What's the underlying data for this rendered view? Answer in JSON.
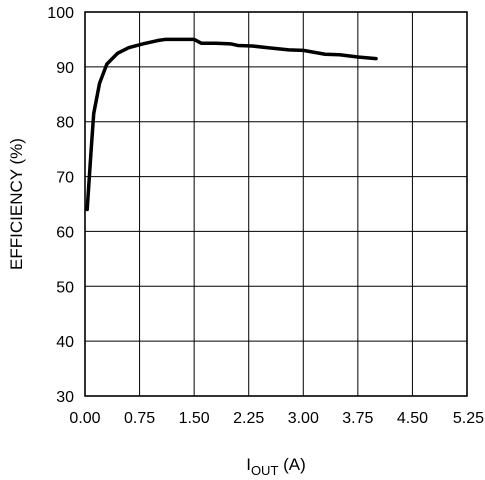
{
  "chart_data": {
    "type": "line",
    "title": "",
    "xlabel_main": "I",
    "xlabel_sub": "OUT",
    "xlabel_unit": " (A)",
    "ylabel": "EFFICIENCY (%)",
    "xlim": [
      0,
      5.25
    ],
    "ylim": [
      30,
      100
    ],
    "grid": true,
    "x_ticks": [
      0,
      0.75,
      1.5,
      2.25,
      3.0,
      3.75,
      4.5,
      5.25
    ],
    "x_tick_labels": [
      "0.00",
      "0.75",
      "1.50",
      "2.25",
      "3.00",
      "3.75",
      "4.50",
      "5.25"
    ],
    "y_ticks": [
      30,
      40,
      50,
      60,
      70,
      80,
      90,
      100
    ],
    "y_tick_labels": [
      "30",
      "40",
      "50",
      "60",
      "70",
      "80",
      "90",
      "100"
    ],
    "series": [
      {
        "x": [
          0.03,
          0.08,
          0.12,
          0.2,
          0.3,
          0.45,
          0.6,
          0.8,
          1.0,
          1.1,
          1.3,
          1.5,
          1.6,
          1.8,
          2.0,
          2.1,
          2.3,
          2.5,
          2.8,
          3.0,
          3.3,
          3.5,
          3.75,
          4.0
        ],
        "y": [
          64,
          74,
          81.5,
          87,
          90.5,
          92.5,
          93.5,
          94.2,
          94.8,
          95,
          95,
          95,
          94.3,
          94.3,
          94.2,
          93.9,
          93.8,
          93.5,
          93.1,
          93,
          92.3,
          92.2,
          91.8,
          91.5
        ]
      }
    ]
  }
}
